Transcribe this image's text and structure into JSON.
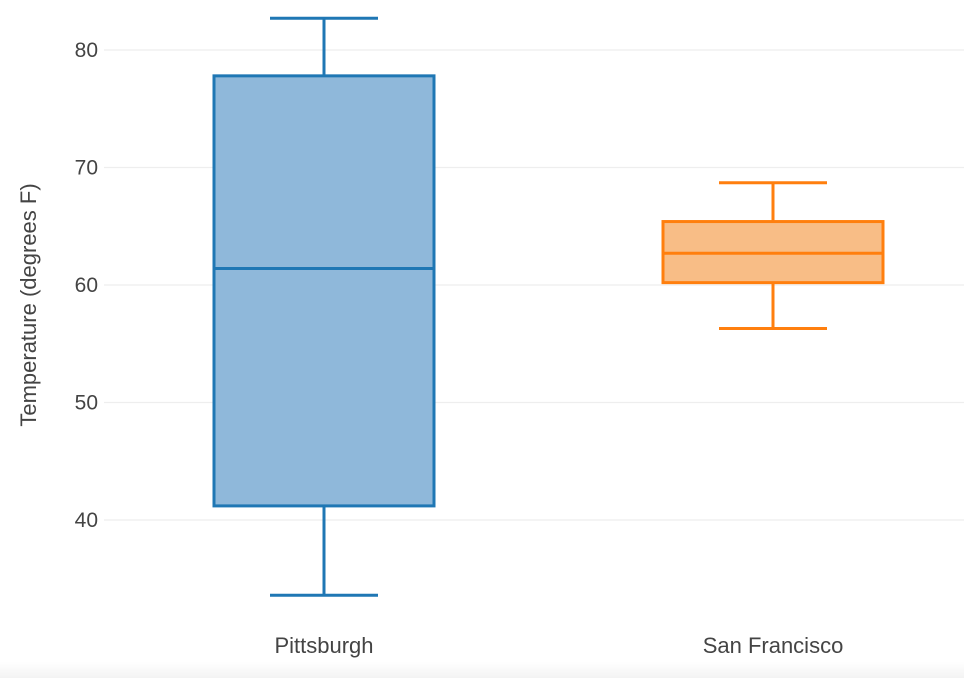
{
  "chart_data": {
    "type": "box",
    "title": "",
    "xlabel": "",
    "ylabel": "Temperature (degrees F)",
    "ylim": [
      31.5,
      85
    ],
    "yticks": [
      40,
      50,
      60,
      70,
      80
    ],
    "grid": true,
    "categories": [
      "Pittsburgh",
      "San Francisco"
    ],
    "series": [
      {
        "category": "Pittsburgh",
        "color": "#1f77b4",
        "fill": "#8fb8da",
        "min": 33.6,
        "q1": 41.2,
        "median": 61.4,
        "q3": 77.8,
        "max": 82.7
      },
      {
        "category": "San Francisco",
        "color": "#ff7f0e",
        "fill": "#f8bd86",
        "min": 56.3,
        "q1": 60.2,
        "median": 62.7,
        "q3": 65.4,
        "max": 68.7
      }
    ]
  }
}
